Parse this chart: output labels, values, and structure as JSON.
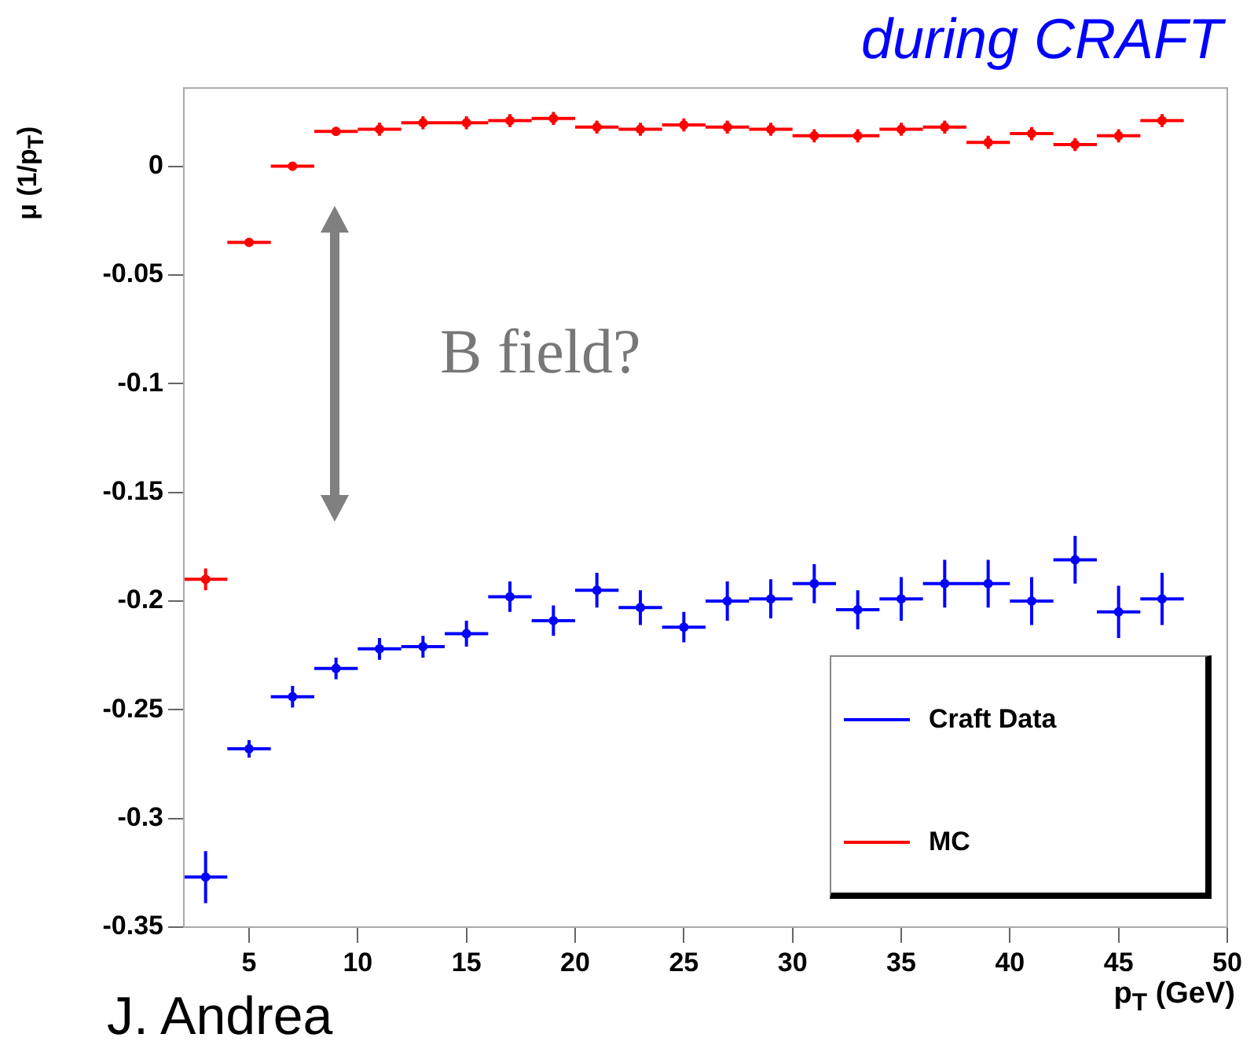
{
  "chart_data": {
    "type": "scatter",
    "title": "during CRAFT",
    "xlabel": "p$_{T}$ (GeV)",
    "ylabel": "μ (1/p$_{T}$)",
    "annotations": [
      "B field?",
      "J. Andrea"
    ],
    "x": [
      3,
      5,
      7,
      9,
      11,
      13,
      15,
      17,
      19,
      21,
      23,
      25,
      27,
      29,
      31,
      33,
      35,
      37,
      39,
      41,
      43,
      45,
      47
    ],
    "series": [
      {
        "name": "Craft Data",
        "color": "#0000ff",
        "values": [
          -0.327,
          -0.268,
          -0.244,
          -0.231,
          -0.222,
          -0.221,
          -0.215,
          -0.198,
          -0.209,
          -0.195,
          -0.203,
          -0.212,
          -0.2,
          -0.199,
          -0.192,
          -0.204,
          -0.199,
          -0.192,
          -0.192,
          -0.2,
          -0.181,
          -0.205,
          -0.199
        ],
        "errors": [
          0.012,
          0.004,
          0.005,
          0.005,
          0.005,
          0.005,
          0.006,
          0.007,
          0.007,
          0.008,
          0.008,
          0.007,
          0.009,
          0.009,
          0.009,
          0.009,
          0.01,
          0.011,
          0.011,
          0.011,
          0.011,
          0.012,
          0.012
        ],
        "xerrors": [
          1,
          1,
          1,
          1,
          1,
          1,
          1,
          1,
          1,
          1,
          1,
          1,
          1,
          1,
          1,
          1,
          1,
          1,
          1,
          1,
          1,
          1,
          1
        ]
      },
      {
        "name": "MC",
        "color": "#ff0000",
        "values": [
          -0.19,
          -0.035,
          0,
          0.016,
          0.017,
          0.02,
          0.02,
          0.021,
          0.022,
          0.018,
          0.017,
          0.019,
          0.018,
          0.017,
          0.014,
          0.014,
          0.017,
          0.018,
          0.011,
          0.015,
          0.01,
          0.014,
          0.021
        ],
        "errors": [
          0.005,
          0.002,
          0.002,
          0.002,
          0.003,
          0.003,
          0.003,
          0.003,
          0.003,
          0.003,
          0.003,
          0.003,
          0.003,
          0.003,
          0.003,
          0.003,
          0.003,
          0.003,
          0.003,
          0.003,
          0.003,
          0.003,
          0.003
        ],
        "xerrors": [
          1,
          1,
          1,
          1,
          1,
          1,
          1,
          1,
          1,
          1,
          1,
          1,
          1,
          1,
          1,
          1,
          1,
          1,
          1,
          1,
          1,
          1,
          1
        ]
      }
    ],
    "xlim": [
      2,
      50
    ],
    "xticks": [
      5,
      10,
      15,
      20,
      25,
      30,
      35,
      40,
      45,
      50
    ],
    "ylim": [
      -0.35,
      0.036
    ],
    "yticks": [
      -0.35,
      -0.3,
      -0.25,
      -0.2,
      -0.15,
      -0.1,
      -0.05,
      0
    ],
    "grid": false,
    "legend": "bottom right",
    "marker": "circle"
  }
}
